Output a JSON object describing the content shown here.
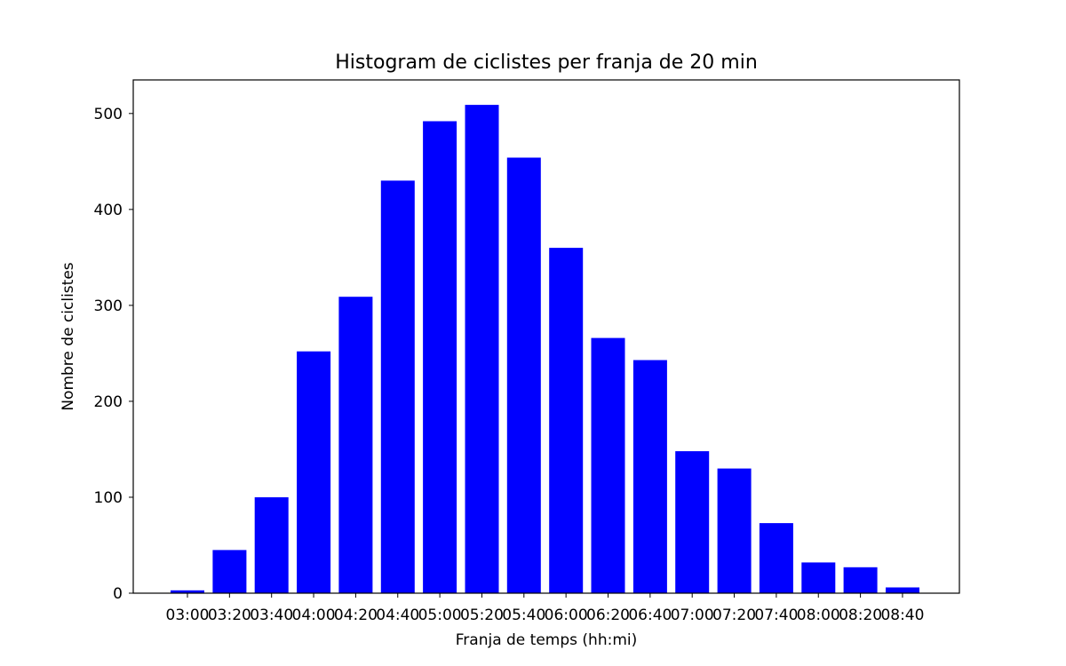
{
  "chart_data": {
    "type": "bar",
    "title": "Histogram de ciclistes per franja de 20 min",
    "xlabel": "Franja de temps (hh:mi)",
    "ylabel": "Nombre de ciclistes",
    "categories": [
      "03:00",
      "03:20",
      "03:40",
      "04:00",
      "04:20",
      "04:40",
      "05:00",
      "05:20",
      "05:40",
      "06:00",
      "06:20",
      "06:40",
      "07:00",
      "07:20",
      "07:40",
      "08:00",
      "08:20",
      "08:40"
    ],
    "values": [
      3,
      45,
      100,
      252,
      309,
      430,
      492,
      509,
      454,
      360,
      266,
      243,
      148,
      130,
      73,
      32,
      27,
      6
    ],
    "ylim": [
      0,
      535
    ],
    "yticks": [
      0,
      100,
      200,
      300,
      400,
      500
    ],
    "bar_color": "#0000ff",
    "grid": false,
    "legend": "none"
  }
}
